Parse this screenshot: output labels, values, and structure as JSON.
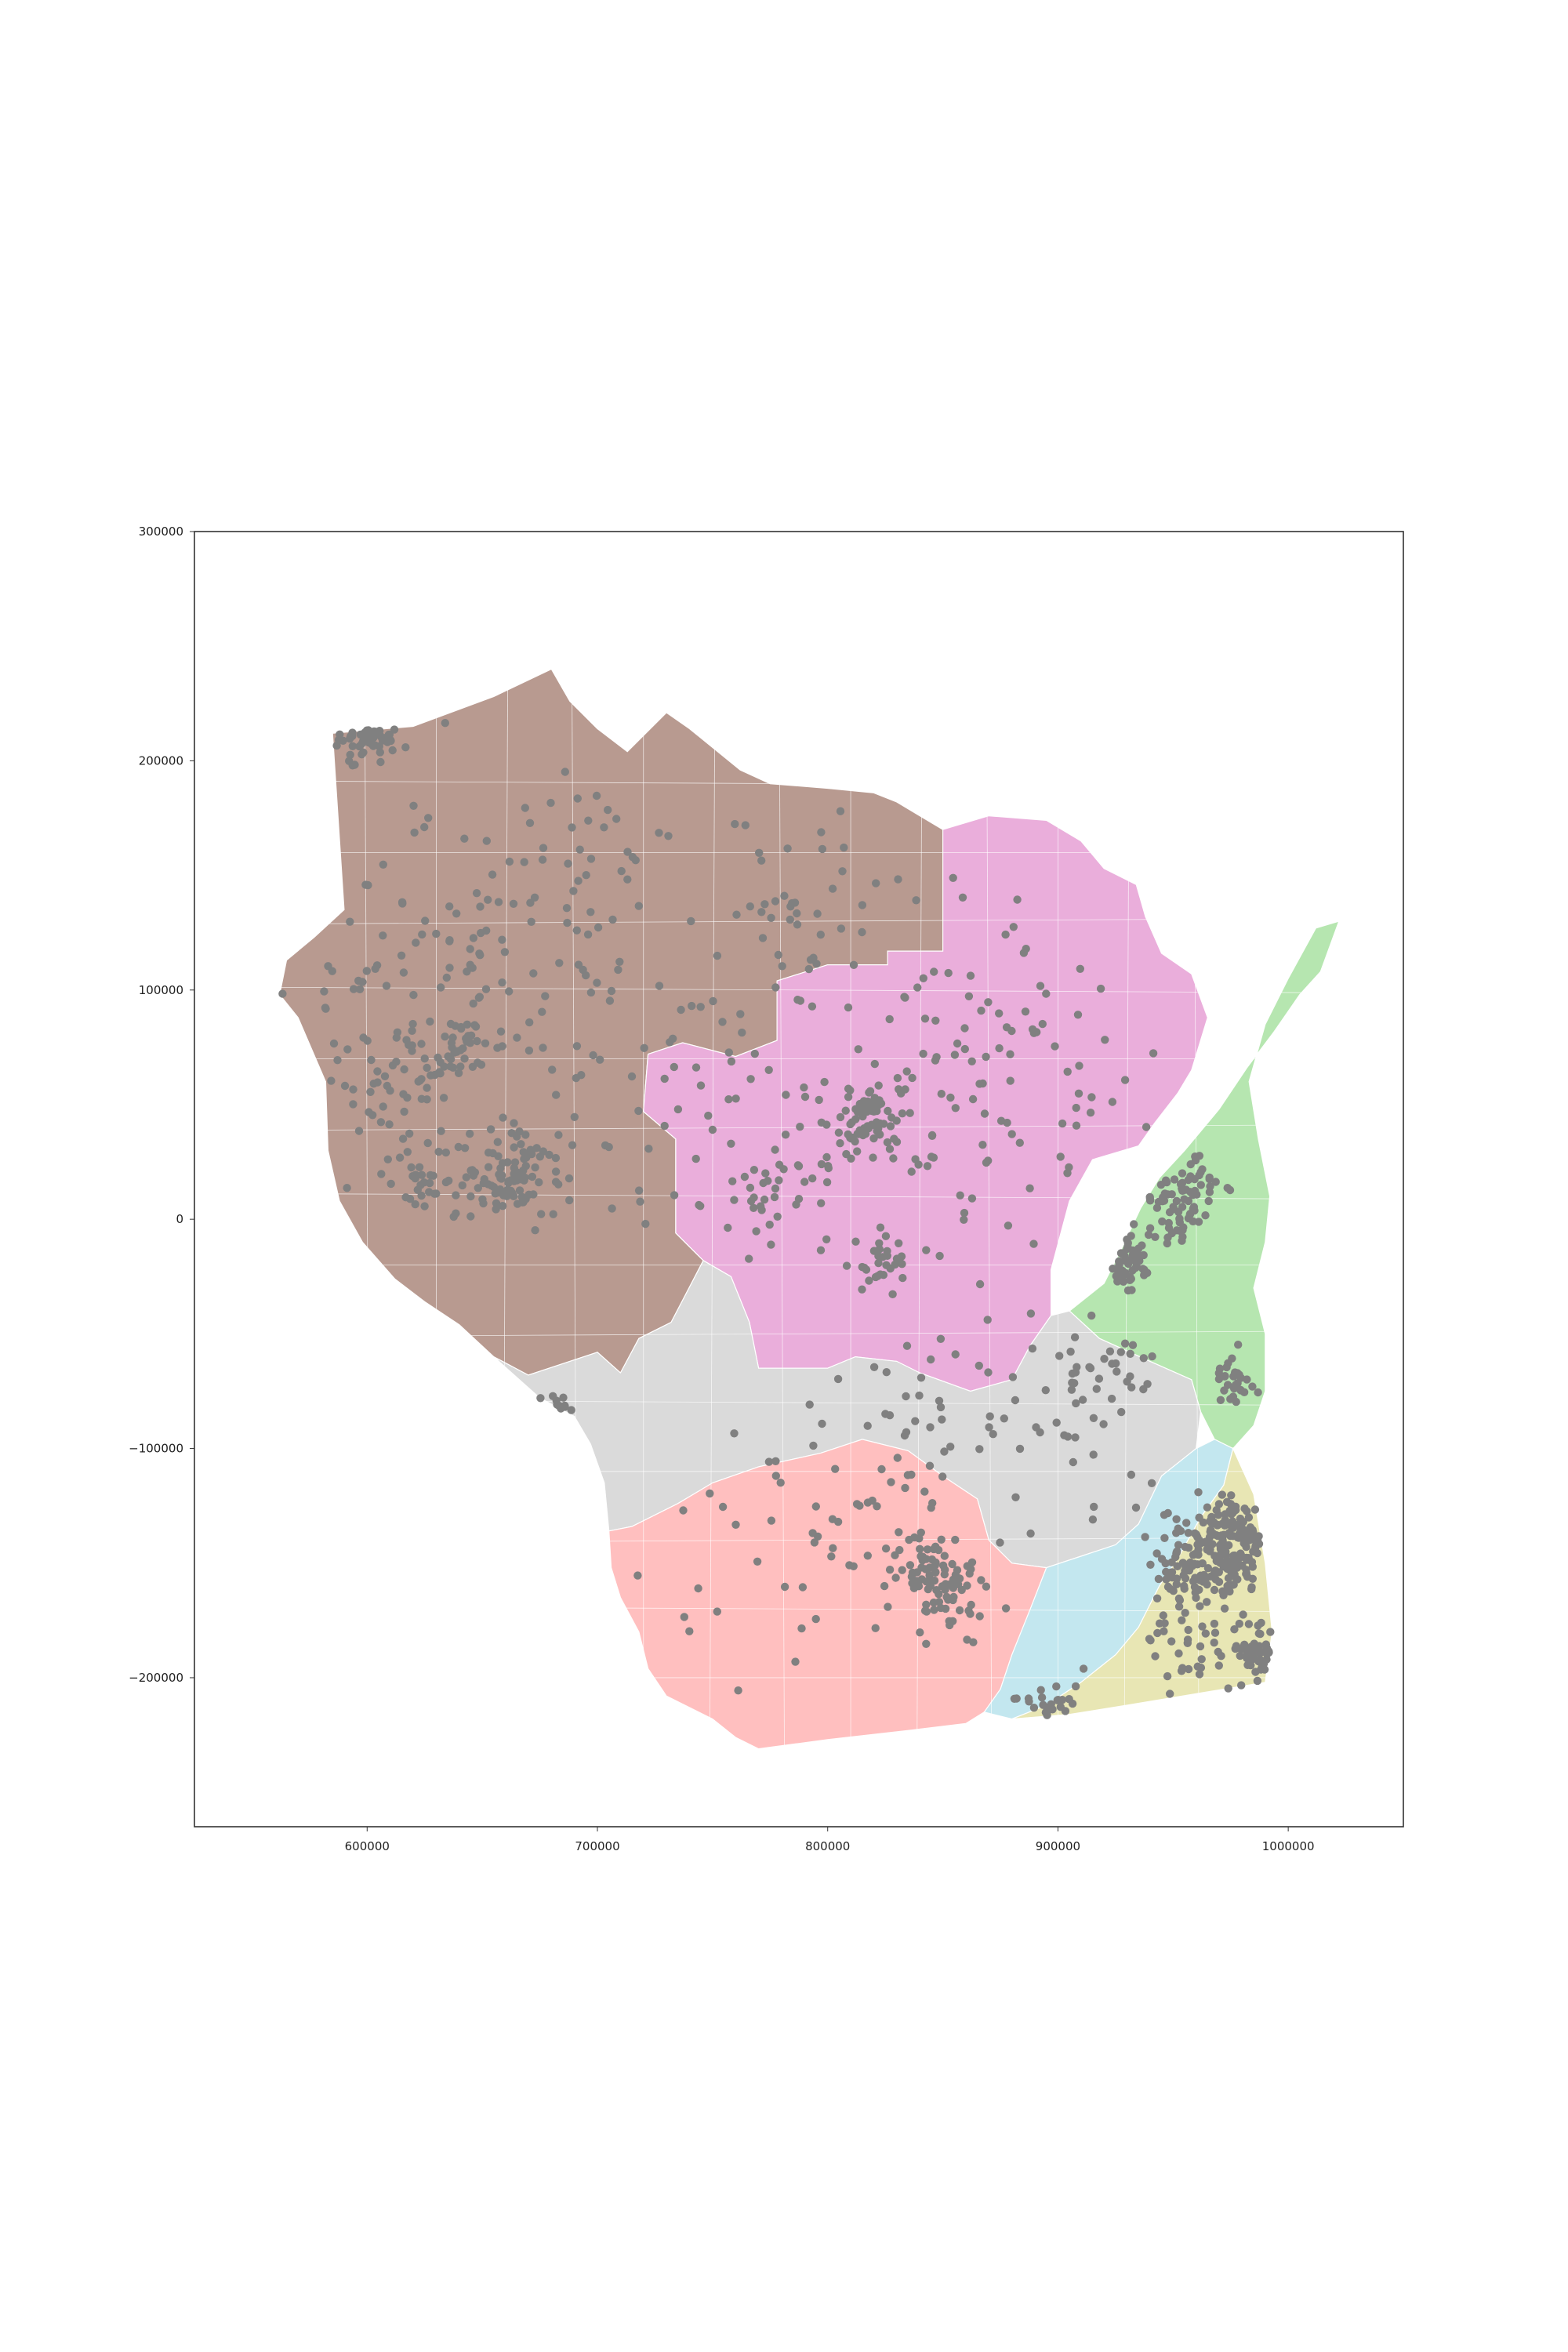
{
  "chart_data": {
    "type": "scatter",
    "base": "choropleth",
    "title": "",
    "xlabel": "",
    "ylabel": "",
    "xlim": [
      525000,
      1050000
    ],
    "ylim": [
      -265000,
      300000
    ],
    "grid": false,
    "legend": "none",
    "x_ticks": [
      {
        "value": 600000,
        "label": "600000"
      },
      {
        "value": 700000,
        "label": "700000"
      },
      {
        "value": 800000,
        "label": "800000"
      },
      {
        "value": 900000,
        "label": "900000"
      },
      {
        "value": 1000000,
        "label": "1000000"
      }
    ],
    "y_ticks": [
      {
        "value": 300000,
        "label": "300000"
      },
      {
        "value": 200000,
        "label": "200000"
      },
      {
        "value": 100000,
        "label": "100000"
      },
      {
        "value": 0,
        "label": "0"
      },
      {
        "value": -100000,
        "label": "−100000"
      },
      {
        "value": -200000,
        "label": "−200000"
      }
    ],
    "regions": [
      {
        "id": "northwest",
        "color": "#b89a90",
        "polygon": [
          [
            585000,
            212000
          ],
          [
            620000,
            215000
          ],
          [
            655000,
            228000
          ],
          [
            680000,
            240000
          ],
          [
            688000,
            226000
          ],
          [
            700000,
            214000
          ],
          [
            713000,
            204000
          ],
          [
            730000,
            221000
          ],
          [
            740000,
            214000
          ],
          [
            762000,
            196000
          ],
          [
            775000,
            190000
          ],
          [
            800000,
            188000
          ],
          [
            820000,
            186000
          ],
          [
            830000,
            182000
          ],
          [
            840000,
            176000
          ],
          [
            850000,
            170000
          ],
          [
            850000,
            117000
          ],
          [
            826000,
            117000
          ],
          [
            826000,
            111000
          ],
          [
            800000,
            111000
          ],
          [
            778000,
            104000
          ],
          [
            778000,
            78000
          ],
          [
            760000,
            71000
          ],
          [
            737000,
            77000
          ],
          [
            722000,
            72000
          ],
          [
            720000,
            47000
          ],
          [
            734000,
            35000
          ],
          [
            734000,
            -6000
          ],
          [
            746000,
            -18000
          ],
          [
            732000,
            -45000
          ],
          [
            718000,
            -52000
          ],
          [
            710000,
            -67000
          ],
          [
            700000,
            -58000
          ],
          [
            688000,
            -62000
          ],
          [
            670000,
            -68000
          ],
          [
            655000,
            -60000
          ],
          [
            640000,
            -46000
          ],
          [
            625000,
            -36000
          ],
          [
            612000,
            -26000
          ],
          [
            598000,
            -10000
          ],
          [
            588000,
            8000
          ],
          [
            583000,
            30000
          ],
          [
            582000,
            60000
          ],
          [
            570000,
            88000
          ],
          [
            562000,
            98000
          ],
          [
            565000,
            113000
          ],
          [
            577000,
            123000
          ],
          [
            590000,
            135000
          ]
        ]
      },
      {
        "id": "north-central",
        "color": "#eaaedb",
        "polygon": [
          [
            850000,
            170000
          ],
          [
            870000,
            176000
          ],
          [
            895000,
            174000
          ],
          [
            910000,
            165000
          ],
          [
            920000,
            153000
          ],
          [
            934000,
            146000
          ],
          [
            938000,
            132000
          ],
          [
            945000,
            116000
          ],
          [
            958000,
            107000
          ],
          [
            965000,
            88000
          ],
          [
            958000,
            65000
          ],
          [
            952000,
            55000
          ],
          [
            942000,
            42000
          ],
          [
            935000,
            32000
          ],
          [
            915000,
            26000
          ],
          [
            905000,
            8000
          ],
          [
            897000,
            -22000
          ],
          [
            897000,
            -42000
          ],
          [
            888000,
            -55000
          ],
          [
            880000,
            -70000
          ],
          [
            862000,
            -75000
          ],
          [
            840000,
            -67000
          ],
          [
            830000,
            -62000
          ],
          [
            812000,
            -60000
          ],
          [
            800000,
            -65000
          ],
          [
            770000,
            -65000
          ],
          [
            766000,
            -45000
          ],
          [
            758000,
            -25000
          ],
          [
            746000,
            -18000
          ],
          [
            734000,
            -6000
          ],
          [
            734000,
            35000
          ],
          [
            720000,
            47000
          ],
          [
            722000,
            72000
          ],
          [
            737000,
            77000
          ],
          [
            760000,
            71000
          ],
          [
            778000,
            78000
          ],
          [
            778000,
            104000
          ],
          [
            800000,
            111000
          ],
          [
            826000,
            111000
          ],
          [
            826000,
            117000
          ],
          [
            850000,
            117000
          ]
        ]
      },
      {
        "id": "northeast",
        "color": "#b6e6b0",
        "polygon": [
          [
            1012000,
            127000
          ],
          [
            1022000,
            130000
          ],
          [
            1014000,
            108000
          ],
          [
            1005000,
            98000
          ],
          [
            994000,
            82000
          ],
          [
            982000,
            66000
          ],
          [
            970000,
            48000
          ],
          [
            955000,
            30000
          ],
          [
            944000,
            18000
          ],
          [
            936000,
            5000
          ],
          [
            928000,
            -12000
          ],
          [
            920000,
            -28000
          ],
          [
            905000,
            -40000
          ],
          [
            918000,
            -52000
          ],
          [
            940000,
            -62000
          ],
          [
            958000,
            -70000
          ],
          [
            962000,
            -84000
          ],
          [
            968000,
            -96000
          ],
          [
            976000,
            -100000
          ],
          [
            985000,
            -90000
          ],
          [
            990000,
            -75000
          ],
          [
            990000,
            -50000
          ],
          [
            985000,
            -30000
          ],
          [
            990000,
            -10000
          ],
          [
            992000,
            10000
          ],
          [
            987000,
            35000
          ],
          [
            983000,
            60000
          ],
          [
            990000,
            85000
          ],
          [
            1000000,
            105000
          ]
        ]
      },
      {
        "id": "central-south",
        "color": "#dadada",
        "polygon": [
          [
            655000,
            -60000
          ],
          [
            670000,
            -68000
          ],
          [
            688000,
            -62000
          ],
          [
            700000,
            -58000
          ],
          [
            710000,
            -67000
          ],
          [
            718000,
            -52000
          ],
          [
            732000,
            -45000
          ],
          [
            746000,
            -18000
          ],
          [
            758000,
            -25000
          ],
          [
            766000,
            -45000
          ],
          [
            770000,
            -65000
          ],
          [
            800000,
            -65000
          ],
          [
            812000,
            -60000
          ],
          [
            830000,
            -62000
          ],
          [
            840000,
            -67000
          ],
          [
            862000,
            -75000
          ],
          [
            880000,
            -70000
          ],
          [
            888000,
            -55000
          ],
          [
            897000,
            -42000
          ],
          [
            905000,
            -40000
          ],
          [
            918000,
            -52000
          ],
          [
            940000,
            -62000
          ],
          [
            958000,
            -70000
          ],
          [
            962000,
            -84000
          ],
          [
            960000,
            -100000
          ],
          [
            945000,
            -112000
          ],
          [
            935000,
            -133000
          ],
          [
            925000,
            -142000
          ],
          [
            910000,
            -147000
          ],
          [
            895000,
            -152000
          ],
          [
            880000,
            -150000
          ],
          [
            870000,
            -140000
          ],
          [
            865000,
            -122000
          ],
          [
            850000,
            -112000
          ],
          [
            835000,
            -101000
          ],
          [
            815000,
            -96000
          ],
          [
            797000,
            -102000
          ],
          [
            770000,
            -108000
          ],
          [
            750000,
            -115000
          ],
          [
            735000,
            -124000
          ],
          [
            715000,
            -134000
          ],
          [
            705000,
            -136000
          ],
          [
            703000,
            -115000
          ],
          [
            697000,
            -98000
          ],
          [
            690000,
            -86000
          ],
          [
            675000,
            -78000
          ]
        ]
      },
      {
        "id": "southwest",
        "color": "#ffbfbf",
        "polygon": [
          [
            705000,
            -136000
          ],
          [
            715000,
            -134000
          ],
          [
            735000,
            -124000
          ],
          [
            750000,
            -115000
          ],
          [
            770000,
            -108000
          ],
          [
            797000,
            -102000
          ],
          [
            815000,
            -96000
          ],
          [
            835000,
            -101000
          ],
          [
            850000,
            -112000
          ],
          [
            865000,
            -122000
          ],
          [
            870000,
            -140000
          ],
          [
            880000,
            -150000
          ],
          [
            895000,
            -152000
          ],
          [
            888000,
            -170000
          ],
          [
            880000,
            -190000
          ],
          [
            875000,
            -205000
          ],
          [
            868000,
            -215000
          ],
          [
            860000,
            -220000
          ],
          [
            835000,
            -223000
          ],
          [
            800000,
            -227000
          ],
          [
            770000,
            -231000
          ],
          [
            760000,
            -226000
          ],
          [
            750000,
            -218000
          ],
          [
            730000,
            -208000
          ],
          [
            722000,
            -196000
          ],
          [
            718000,
            -180000
          ],
          [
            710000,
            -165000
          ],
          [
            706000,
            -152000
          ]
        ]
      },
      {
        "id": "south-central",
        "color": "#c3e7ef",
        "polygon": [
          [
            895000,
            -152000
          ],
          [
            910000,
            -147000
          ],
          [
            925000,
            -142000
          ],
          [
            935000,
            -133000
          ],
          [
            945000,
            -112000
          ],
          [
            960000,
            -100000
          ],
          [
            968000,
            -96000
          ],
          [
            976000,
            -100000
          ],
          [
            972000,
            -116000
          ],
          [
            962000,
            -130000
          ],
          [
            952000,
            -148000
          ],
          [
            944000,
            -160000
          ],
          [
            935000,
            -178000
          ],
          [
            925000,
            -190000
          ],
          [
            910000,
            -202000
          ],
          [
            895000,
            -212000
          ],
          [
            880000,
            -218000
          ],
          [
            868000,
            -215000
          ],
          [
            875000,
            -205000
          ],
          [
            880000,
            -190000
          ],
          [
            888000,
            -170000
          ]
        ]
      },
      {
        "id": "southeast",
        "color": "#e8e6b4",
        "polygon": [
          [
            976000,
            -100000
          ],
          [
            985000,
            -120000
          ],
          [
            990000,
            -150000
          ],
          [
            993000,
            -180000
          ],
          [
            990000,
            -202000
          ],
          [
            960000,
            -207000
          ],
          [
            930000,
            -212000
          ],
          [
            905000,
            -216000
          ],
          [
            880000,
            -218000
          ],
          [
            895000,
            -212000
          ],
          [
            910000,
            -202000
          ],
          [
            925000,
            -190000
          ],
          [
            935000,
            -178000
          ],
          [
            944000,
            -160000
          ],
          [
            952000,
            -148000
          ],
          [
            962000,
            -130000
          ],
          [
            972000,
            -116000
          ]
        ]
      }
    ],
    "point_color": "#808080",
    "point_clusters": [
      {
        "x": 598000,
        "y": 215000,
        "spread": 6000,
        "count": 40
      },
      {
        "x": 606000,
        "y": 210000,
        "spread": 4000,
        "count": 15
      },
      {
        "x": 640000,
        "y": 75000,
        "spread": 7000,
        "count": 40
      },
      {
        "x": 660000,
        "y": 15000,
        "spread": 9000,
        "count": 60
      },
      {
        "x": 668000,
        "y": 23000,
        "spread": 8000,
        "count": 35
      },
      {
        "x": 630000,
        "y": 20000,
        "spread": 9000,
        "count": 35
      },
      {
        "x": 612000,
        "y": 60000,
        "spread": 15000,
        "count": 40
      },
      {
        "x": 705000,
        "y": 165000,
        "spread": 20000,
        "count": 30
      },
      {
        "x": 790000,
        "y": 135000,
        "spread": 20000,
        "count": 40
      },
      {
        "x": 820000,
        "y": 45000,
        "spread": 7000,
        "count": 50
      },
      {
        "x": 812000,
        "y": 40000,
        "spread": 6000,
        "count": 25
      },
      {
        "x": 825000,
        "y": -20000,
        "spread": 7000,
        "count": 30
      },
      {
        "x": 775000,
        "y": 10000,
        "spread": 12000,
        "count": 30
      },
      {
        "x": 948000,
        "y": 5000,
        "spread": 8000,
        "count": 50
      },
      {
        "x": 960000,
        "y": 15000,
        "spread": 6000,
        "count": 30
      },
      {
        "x": 928000,
        "y": -17000,
        "spread": 7000,
        "count": 50
      },
      {
        "x": 978000,
        "y": -70000,
        "spread": 5000,
        "count": 30
      },
      {
        "x": 675000,
        "y": -90000,
        "spread": 5000,
        "count": 30
      },
      {
        "x": 850000,
        "y": -160000,
        "spread": 9000,
        "count": 70
      },
      {
        "x": 842000,
        "y": -152000,
        "spread": 7000,
        "count": 30
      },
      {
        "x": 970000,
        "y": -145000,
        "spread": 10000,
        "count": 130
      },
      {
        "x": 980000,
        "y": -135000,
        "spread": 8000,
        "count": 70
      },
      {
        "x": 955000,
        "y": -150000,
        "spread": 10000,
        "count": 60
      },
      {
        "x": 988000,
        "y": -190000,
        "spread": 6000,
        "count": 50
      },
      {
        "x": 960000,
        "y": -180000,
        "spread": 12000,
        "count": 40
      },
      {
        "x": 900000,
        "y": -215000,
        "spread": 8000,
        "count": 25
      },
      {
        "x": 920000,
        "y": -70000,
        "spread": 12000,
        "count": 30
      },
      {
        "x": 800000,
        "y": -130000,
        "spread": 30000,
        "count": 60
      },
      {
        "x": 870000,
        "y": -90000,
        "spread": 30000,
        "count": 60
      },
      {
        "x": 860000,
        "y": 60000,
        "spread": 40000,
        "count": 120
      },
      {
        "x": 640000,
        "y": 110000,
        "spread": 40000,
        "count": 120
      },
      {
        "x": 740000,
        "y": 50000,
        "spread": 30000,
        "count": 60
      }
    ],
    "seed": 7
  }
}
